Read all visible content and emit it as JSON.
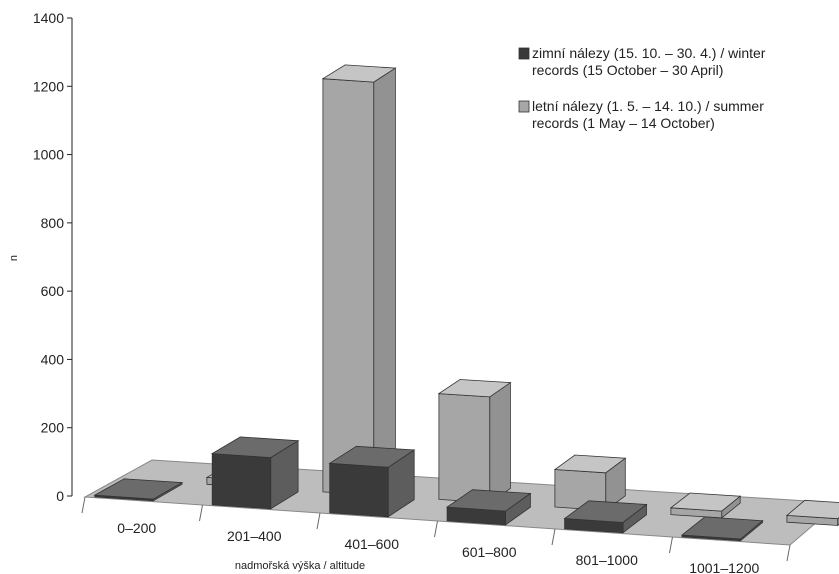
{
  "chart_data": {
    "type": "bar",
    "projection": "3d",
    "categories": [
      "0–200",
      "201–400",
      "401–600",
      "601–800",
      "801–1000",
      "1001–1200"
    ],
    "series": [
      {
        "name": "zimní nálezy (15. 10. – 30. 4.)  /  winter records (15 October – 30 April)",
        "legend_lines": [
          "zimní nálezy (15. 10. – 30. 4.)  /  winter",
          "records (15 October – 30 April)"
        ],
        "color": "#3a3a3a",
        "values": [
          5,
          150,
          145,
          40,
          30,
          5
        ]
      },
      {
        "name": "letní nálezy (1. 5. – 14. 10.)  /  summer records (1 May – 14 October)",
        "legend_lines": [
          "letní nálezy (1. 5. – 14. 10.)  /  summer",
          "records (1 May – 14 October)"
        ],
        "color": "#a6a6a6",
        "values": [
          20,
          1210,
          310,
          110,
          20,
          20
        ]
      }
    ],
    "ylim": [
      0,
      1400
    ],
    "yticks": [
      "0",
      "200",
      "400",
      "600",
      "800",
      "1000",
      "1200",
      "1400"
    ],
    "ylabel": "n",
    "xlabel": "nadmořská výška / altitude",
    "legend_position": "top-right",
    "grid": false
  }
}
